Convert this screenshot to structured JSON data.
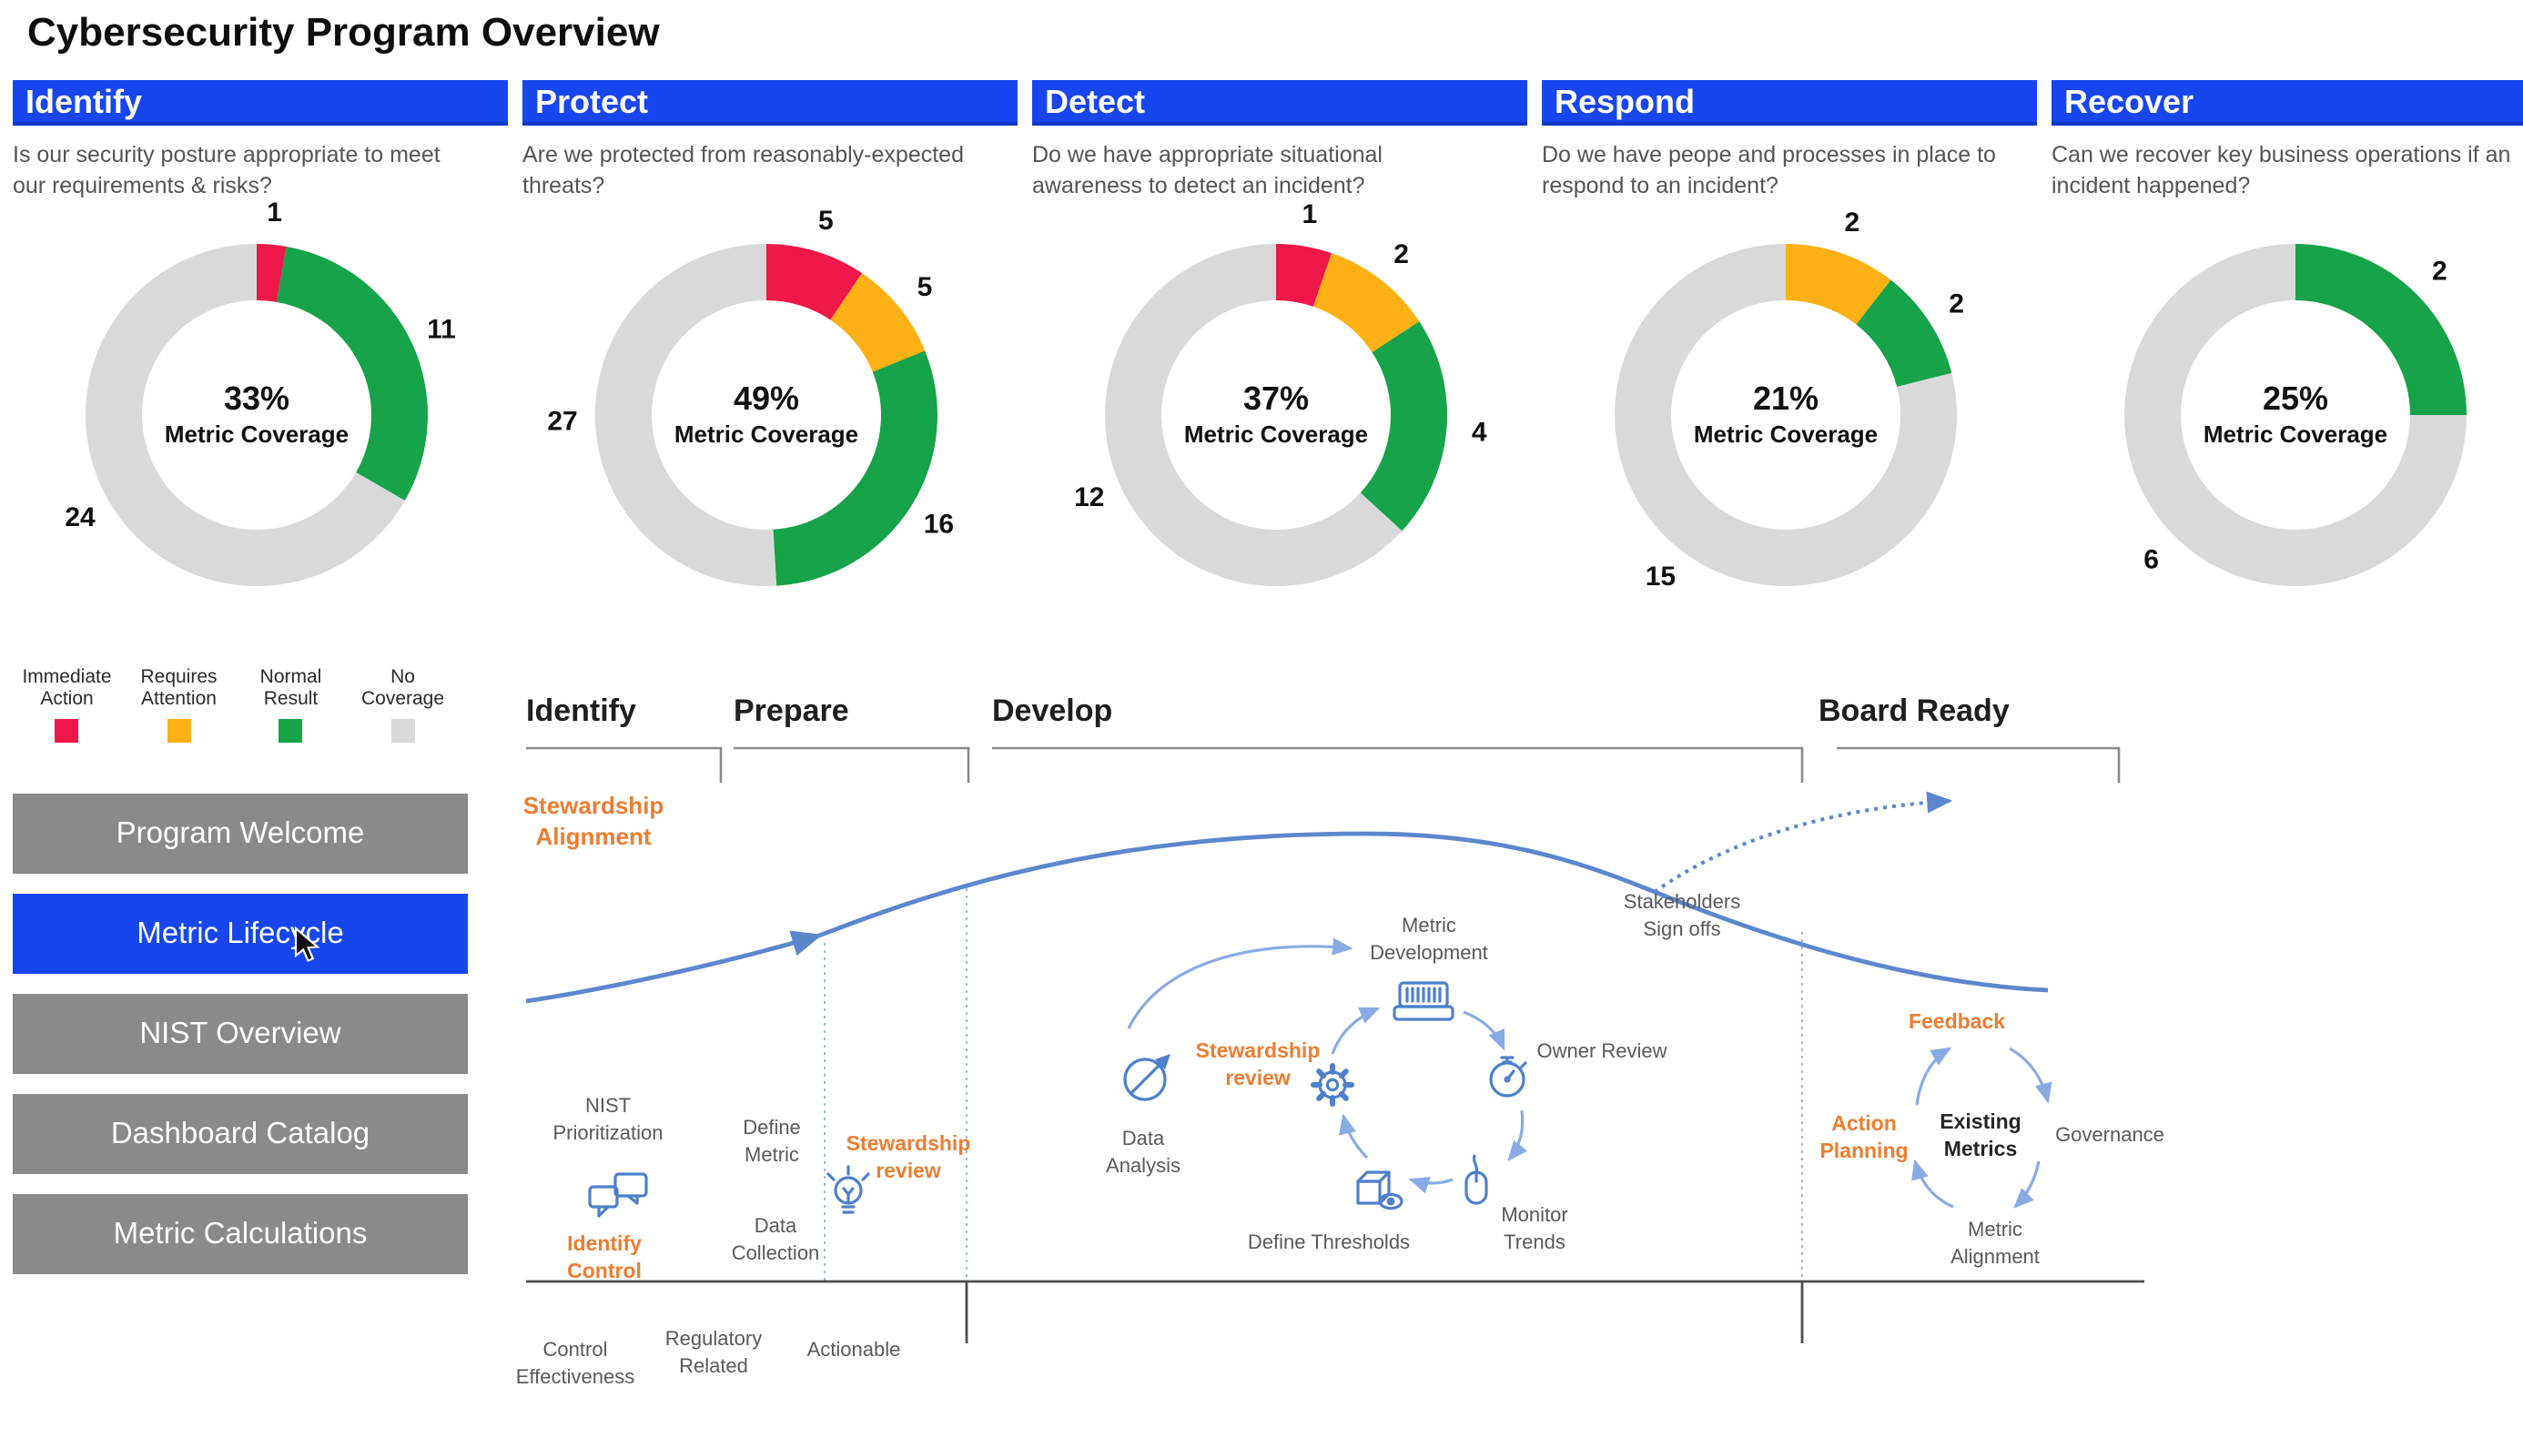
{
  "title": "Cybersecurity Program Overview",
  "ui_colors": {
    "accent_blue": "#1746EF",
    "button_gray": "#8A8A8A",
    "immediate_action_red": "#EE1848",
    "requires_attention_orange": "#FFB014",
    "normal_result_green": "#16A34A",
    "no_coverage_gray": "#D9D9D9",
    "diagram_blue": "#5B87CC",
    "diagram_orange": "#ED7D31"
  },
  "legend": {
    "items": [
      {
        "label": "Immediate Action",
        "color": "#EE1848"
      },
      {
        "label": "Requires Attention",
        "color": "#FFB014"
      },
      {
        "label": "Normal Result",
        "color": "#16A34A"
      },
      {
        "label": "No Coverage",
        "color": "#D9D9D9"
      }
    ]
  },
  "sidebar": {
    "items": [
      {
        "label": "Program Welcome",
        "active": false
      },
      {
        "label": "Metric Lifecycle",
        "active": true
      },
      {
        "label": "NIST Overview",
        "active": false
      },
      {
        "label": "Dashboard Catalog",
        "active": false
      },
      {
        "label": "Metric Calculations",
        "active": false
      }
    ]
  },
  "chart_data": [
    {
      "type": "donut",
      "phase": "Identify",
      "question": "Is our security posture appropriate to meet our requirements & risks?",
      "center_pct": "33%",
      "center_label": "Metric Coverage",
      "segments": [
        {
          "label": "Immediate Action",
          "value": 1,
          "color": "#EE1848"
        },
        {
          "label": "Normal Result",
          "value": 11,
          "color": "#16A34A"
        },
        {
          "label": "No Coverage",
          "value": 24,
          "color": "#D9D9D9"
        }
      ]
    },
    {
      "type": "donut",
      "phase": "Protect",
      "question": "Are we protected from reasonably-expected threats?",
      "center_pct": "49%",
      "center_label": "Metric Coverage",
      "segments": [
        {
          "label": "Immediate Action",
          "value": 5,
          "color": "#EE1848"
        },
        {
          "label": "Requires Attention",
          "value": 5,
          "color": "#FFB014"
        },
        {
          "label": "Normal Result",
          "value": 16,
          "color": "#16A34A"
        },
        {
          "label": "No Coverage",
          "value": 27,
          "color": "#D9D9D9"
        }
      ]
    },
    {
      "type": "donut",
      "phase": "Detect",
      "question": "Do we have appropriate situational awareness to detect an incident?",
      "center_pct": "37%",
      "center_label": "Metric Coverage",
      "segments": [
        {
          "label": "Immediate Action",
          "value": 1,
          "color": "#EE1848"
        },
        {
          "label": "Requires Attention",
          "value": 2,
          "color": "#FFB014"
        },
        {
          "label": "Normal Result",
          "value": 4,
          "color": "#16A34A"
        },
        {
          "label": "No Coverage",
          "value": 12,
          "color": "#D9D9D9"
        }
      ]
    },
    {
      "type": "donut",
      "phase": "Respond",
      "question": "Do we have peope and processes in place to respond to an incident?",
      "center_pct": "21%",
      "center_label": "Metric Coverage",
      "segments": [
        {
          "label": "Requires Attention",
          "value": 2,
          "color": "#FFB014"
        },
        {
          "label": "Normal Result",
          "value": 2,
          "color": "#16A34A"
        },
        {
          "label": "No Coverage",
          "value": 15,
          "color": "#D9D9D9"
        }
      ]
    },
    {
      "type": "donut",
      "phase": "Recover",
      "question": "Can we recover key business operations if an incident happened?",
      "center_pct": "25%",
      "center_label": "Metric Coverage",
      "segments": [
        {
          "label": "Normal Result",
          "value": 2,
          "color": "#16A34A"
        },
        {
          "label": "No Coverage",
          "value": 6,
          "color": "#D9D9D9"
        }
      ]
    }
  ],
  "lifecycle": {
    "phases": [
      {
        "label": "Identify"
      },
      {
        "label": "Prepare"
      },
      {
        "label": "Develop"
      },
      {
        "label": "Board Ready"
      }
    ],
    "stewardship_alignment": [
      "Stewardship",
      "Alignment"
    ],
    "stakeholders_signoffs": [
      "Stakeholders",
      "Sign offs"
    ],
    "identify_stage": {
      "nist_prioritization": [
        "NIST",
        "Prioritization"
      ],
      "identify_control": [
        "Identify",
        "Control"
      ]
    },
    "prepare_stage": {
      "define_metric": [
        "Define",
        "Metric"
      ],
      "stewardship_review": [
        "Stewardship",
        "review"
      ],
      "data_collection": [
        "Data",
        "Collection"
      ]
    },
    "develop_cycle": {
      "metric_development": [
        "Metric",
        "Development"
      ],
      "owner_review": "Owner Review",
      "monitor_trends": [
        "Monitor",
        "Trends"
      ],
      "define_thresholds": "Define Thresholds",
      "stewardship_review": [
        "Stewardship",
        "review"
      ],
      "data_analysis": [
        "Data",
        "Analysis"
      ]
    },
    "board_cycle": {
      "feedback": "Feedback",
      "existing_metrics": [
        "Existing",
        "Metrics"
      ],
      "governance": "Governance",
      "action_planning": [
        "Action",
        "Planning"
      ],
      "metric_alignment": [
        "Metric",
        "Alignment"
      ]
    },
    "criteria": {
      "control_effectiveness": [
        "Control",
        "Effectiveness"
      ],
      "regulatory_related": [
        "Regulatory",
        "Related"
      ],
      "actionable": "Actionable"
    }
  }
}
